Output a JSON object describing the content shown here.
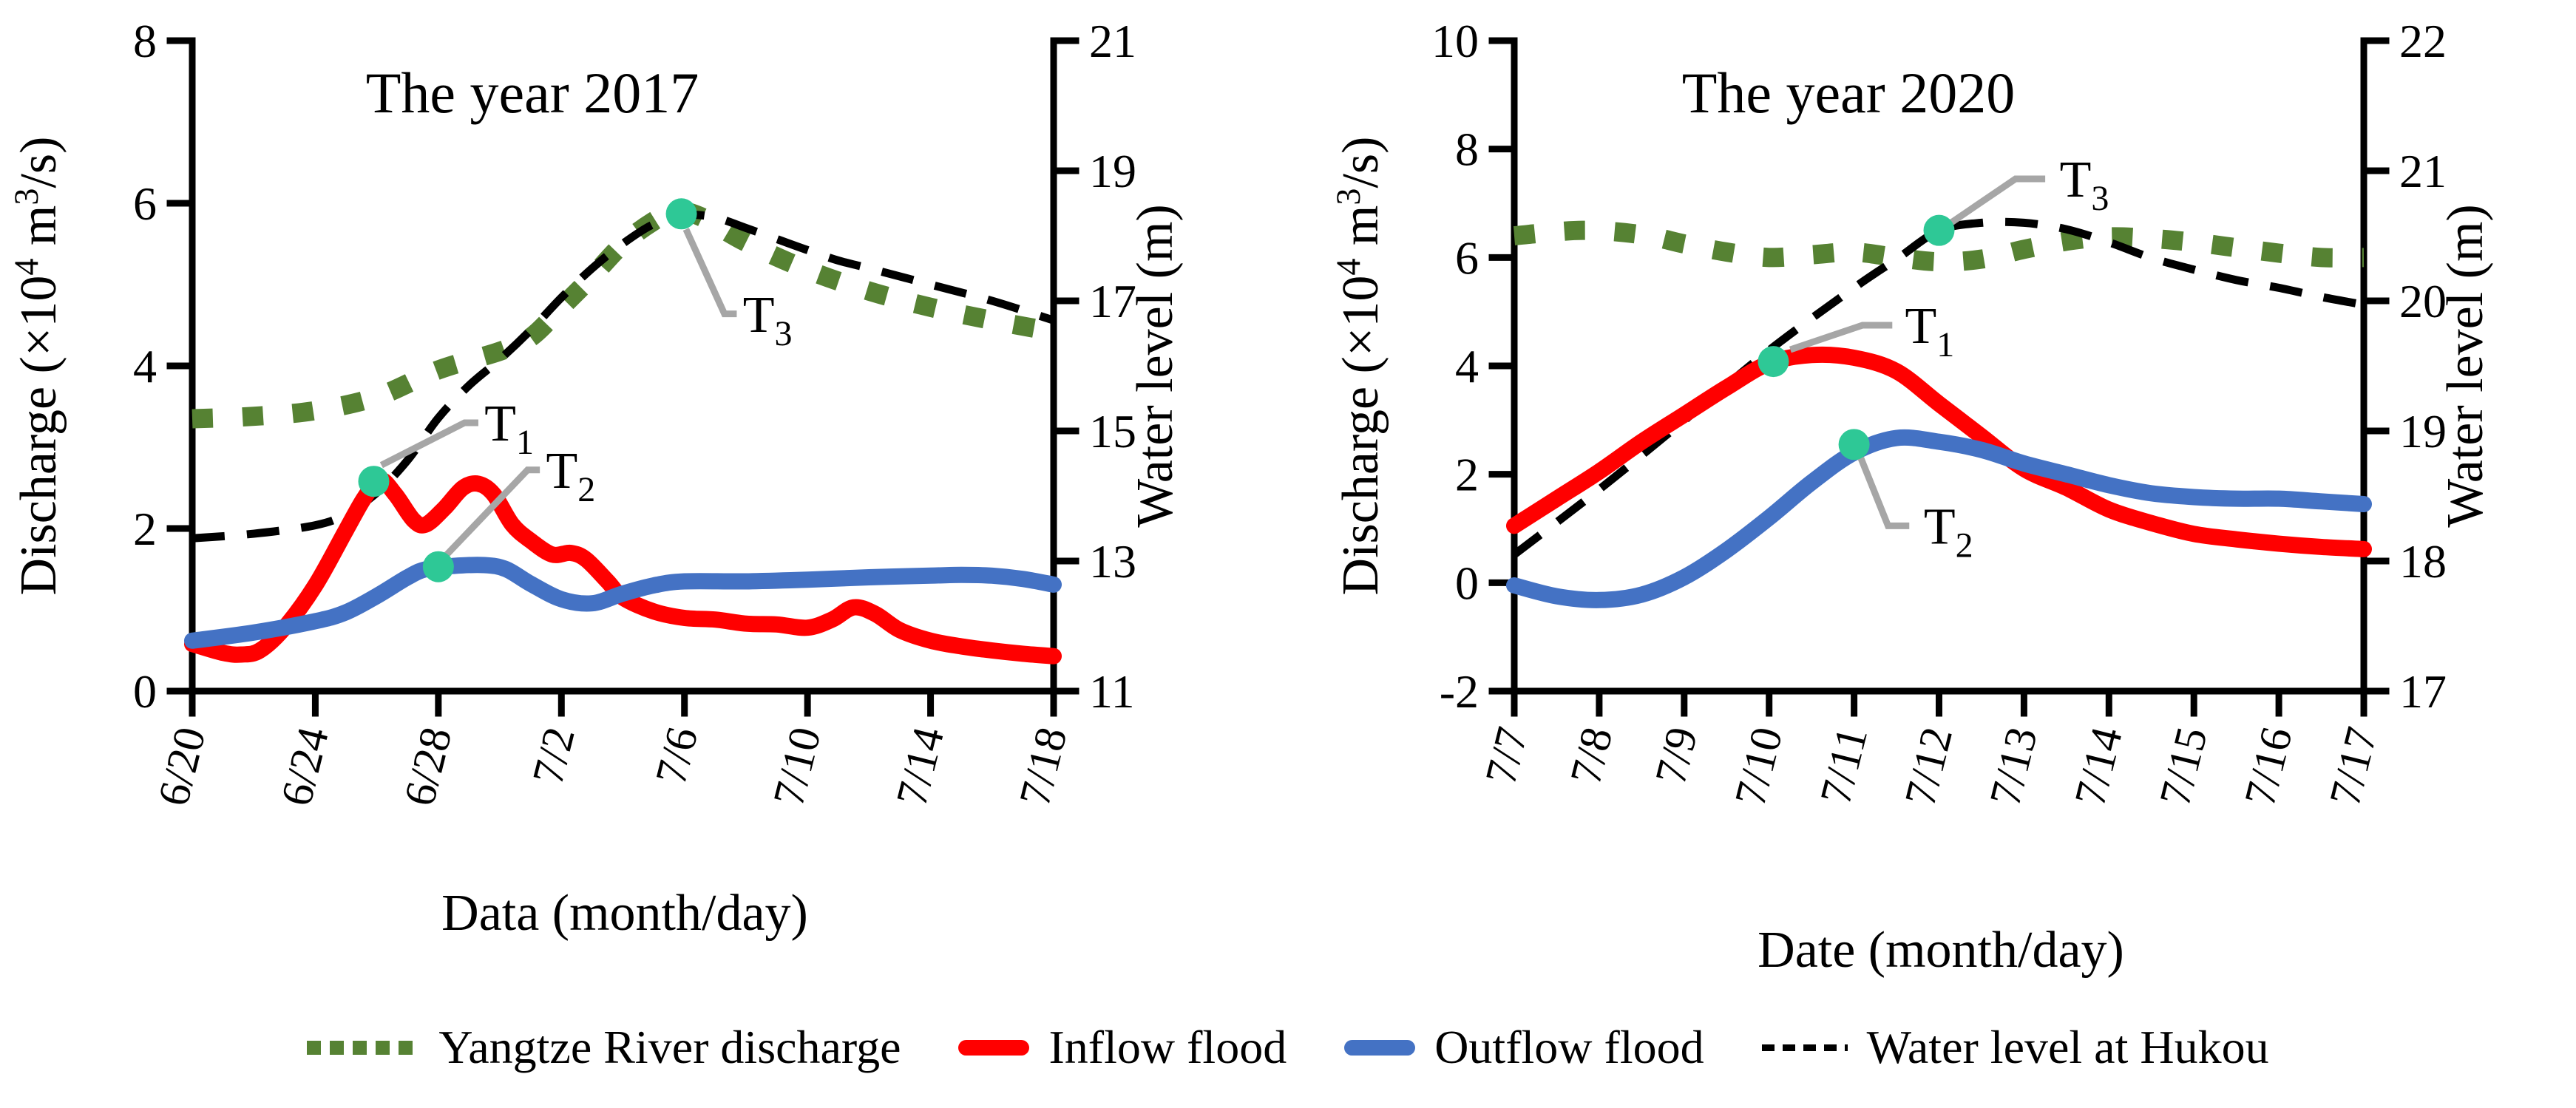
{
  "colors": {
    "green": "#568233",
    "red": "#FF0000",
    "blue": "#4472C4",
    "black": "#000000",
    "marker": "#2EC896",
    "leader": "#A6A6A6"
  },
  "legend": {
    "items": [
      {
        "swatch": "dotted-green",
        "label": "Yangtze River discharge"
      },
      {
        "swatch": "solid-red",
        "label": "Inflow flood"
      },
      {
        "swatch": "solid-blue",
        "label": "Outflow flood"
      },
      {
        "swatch": "dashed-black",
        "label": "Water level at Hukou"
      }
    ]
  },
  "chart_data": [
    {
      "id": "y2017",
      "type": "line",
      "title": "The year 2017",
      "x_title": "Data (month/day)",
      "grid": false,
      "legend_position": "bottom",
      "y_left_title_parts": [
        {
          "t": "Discharge (×10"
        },
        {
          "t": "4",
          "sup": true
        },
        {
          "t": " m"
        },
        {
          "t": "3",
          "sup": true
        },
        {
          "t": "/s)"
        }
      ],
      "y_right_title_parts": [
        {
          "t": "Water level (m)"
        }
      ],
      "x_span": 28,
      "x_tick_days": [
        0,
        4,
        8,
        12,
        16,
        20,
        24,
        28
      ],
      "x_tick_labels": [
        "6/20",
        "6/24",
        "6/28",
        "7/2",
        "7/6",
        "7/10",
        "7/14",
        "7/18"
      ],
      "y_left": {
        "min": 0,
        "max": 8,
        "ticks": [
          0,
          2,
          4,
          6,
          8
        ],
        "labels": [
          "0",
          "2",
          "4",
          "6",
          "8"
        ]
      },
      "y_right": {
        "min": 11,
        "max": 21,
        "ticks": [
          11,
          13,
          15,
          17,
          19,
          21
        ],
        "labels": [
          "11",
          "13",
          "15",
          "17",
          "19",
          "21"
        ]
      },
      "series": [
        {
          "name": "Yangtze River discharge",
          "axis": "left",
          "color": "green",
          "style": "dotted",
          "x": [
            0,
            2,
            4,
            6,
            8,
            10,
            11,
            12,
            13,
            14,
            15,
            15.7,
            16.5,
            18,
            20,
            22,
            24,
            26,
            28
          ],
          "y": [
            3.35,
            3.38,
            3.45,
            3.62,
            3.95,
            4.18,
            4.35,
            4.72,
            5.1,
            5.5,
            5.78,
            5.9,
            5.84,
            5.52,
            5.18,
            4.92,
            4.72,
            4.56,
            4.42
          ]
        },
        {
          "name": "Water level at Hukou",
          "axis": "right",
          "color": "black",
          "style": "dashed",
          "x": [
            0,
            2,
            4,
            5,
            6,
            7,
            8,
            9,
            10,
            11,
            12,
            13,
            14,
            15,
            16,
            17,
            18,
            19,
            20,
            21,
            22,
            24,
            26,
            28
          ],
          "y": [
            13.35,
            13.42,
            13.55,
            13.72,
            14.05,
            14.55,
            15.2,
            15.7,
            16.1,
            16.55,
            17.05,
            17.5,
            17.88,
            18.18,
            18.32,
            18.28,
            18.12,
            17.95,
            17.78,
            17.62,
            17.5,
            17.25,
            17.0,
            16.7
          ]
        },
        {
          "name": "Inflow flood",
          "axis": "left",
          "color": "red",
          "style": "solid",
          "x": [
            0,
            1,
            1.6,
            2.2,
            3,
            4,
            5,
            5.6,
            6.1,
            6.6,
            7.2,
            7.6,
            8.2,
            8.8,
            9.3,
            9.8,
            10.4,
            11,
            11.7,
            12.3,
            12.8,
            13.5,
            14,
            15,
            16,
            17,
            18,
            19,
            20,
            20.8,
            21.5,
            22.2,
            23,
            24,
            25,
            26,
            27,
            28
          ],
          "y": [
            0.58,
            0.47,
            0.45,
            0.5,
            0.78,
            1.3,
            1.98,
            2.38,
            2.6,
            2.42,
            2.1,
            2.05,
            2.25,
            2.5,
            2.55,
            2.42,
            2.05,
            1.85,
            1.68,
            1.7,
            1.62,
            1.35,
            1.15,
            0.98,
            0.9,
            0.88,
            0.83,
            0.82,
            0.78,
            0.88,
            1.03,
            0.95,
            0.75,
            0.62,
            0.55,
            0.5,
            0.46,
            0.43
          ]
        },
        {
          "name": "Outflow flood",
          "axis": "left",
          "color": "blue",
          "style": "solid",
          "x": [
            0,
            2,
            4,
            5,
            6,
            7,
            7.6,
            8.5,
            9.5,
            10.2,
            11,
            12,
            13,
            14,
            15,
            16,
            18,
            20,
            22,
            24,
            25,
            26,
            27,
            28
          ],
          "y": [
            0.62,
            0.72,
            0.86,
            0.97,
            1.17,
            1.4,
            1.5,
            1.54,
            1.55,
            1.5,
            1.32,
            1.13,
            1.08,
            1.2,
            1.3,
            1.35,
            1.35,
            1.37,
            1.4,
            1.42,
            1.43,
            1.42,
            1.38,
            1.31
          ]
        }
      ],
      "markers": [
        {
          "label_main": "T",
          "label_sub": "1",
          "day": 5.9,
          "value": 2.58,
          "leader": [
            [
              6.15,
              2.78
            ],
            [
              8.85,
              3.3
            ],
            [
              9.3,
              3.3
            ]
          ],
          "label_day": 9.5,
          "label_value": 3.08
        },
        {
          "label_main": "T",
          "label_sub": "2",
          "day": 8.0,
          "value": 1.53,
          "leader": [
            [
              8.25,
              1.67
            ],
            [
              10.9,
              2.72
            ],
            [
              11.3,
              2.72
            ]
          ],
          "label_day": 11.5,
          "label_value": 2.5
        },
        {
          "label_main": "T",
          "label_sub": "3",
          "day": 15.9,
          "value": 5.87,
          "leader": [
            [
              16.05,
              5.68
            ],
            [
              17.3,
              4.64
            ],
            [
              17.7,
              4.64
            ]
          ],
          "label_day": 17.9,
          "label_value": 4.42
        }
      ]
    },
    {
      "id": "y2020",
      "type": "line",
      "title": "The year 2020",
      "x_title": "Date (month/day)",
      "grid": false,
      "legend_position": "bottom",
      "y_left_title_parts": [
        {
          "t": "Discharge (×10"
        },
        {
          "t": "4",
          "sup": true
        },
        {
          "t": " m"
        },
        {
          "t": "3",
          "sup": true
        },
        {
          "t": "/s)"
        }
      ],
      "y_right_title_parts": [
        {
          "t": "Water level (m)"
        }
      ],
      "x_span": 10,
      "x_tick_days": [
        0,
        1,
        2,
        3,
        4,
        5,
        6,
        7,
        8,
        9,
        10
      ],
      "x_tick_labels": [
        "7/7",
        "7/8",
        "7/9",
        "7/10",
        "7/11",
        "7/12",
        "7/13",
        "7/14",
        "7/15",
        "7/16",
        "7/17"
      ],
      "y_left": {
        "min": -2,
        "max": 10,
        "ticks": [
          -2,
          0,
          2,
          4,
          6,
          8,
          10
        ],
        "labels": [
          "-2",
          "0",
          "2",
          "4",
          "6",
          "8",
          "10"
        ]
      },
      "y_right": {
        "min": 17,
        "max": 22,
        "ticks": [
          17,
          18,
          19,
          20,
          21,
          22
        ],
        "labels": [
          "17",
          "18",
          "19",
          "20",
          "21",
          "22"
        ]
      },
      "series": [
        {
          "name": "Yangtze River discharge",
          "axis": "left",
          "color": "green",
          "style": "dotted",
          "x": [
            0,
            0.8,
            1.5,
            2,
            2.5,
            3,
            3.5,
            4,
            4.5,
            5,
            5.5,
            6,
            6.5,
            7,
            7.5,
            8,
            8.5,
            9,
            9.5,
            10
          ],
          "y": [
            6.4,
            6.5,
            6.42,
            6.25,
            6.1,
            6.0,
            6.05,
            6.1,
            6.0,
            5.92,
            5.97,
            6.15,
            6.3,
            6.38,
            6.35,
            6.28,
            6.18,
            6.08,
            6.0,
            6.0
          ]
        },
        {
          "name": "Water level at Hukou",
          "axis": "right",
          "color": "black",
          "style": "dashed",
          "x": [
            0,
            1,
            2,
            3,
            4,
            4.5,
            5,
            5.5,
            6,
            6.5,
            7,
            7.5,
            8,
            8.5,
            9,
            9.5,
            10
          ],
          "y": [
            18.05,
            18.55,
            19.08,
            19.62,
            20.1,
            20.32,
            20.54,
            20.6,
            20.6,
            20.55,
            20.45,
            20.33,
            20.24,
            20.16,
            20.1,
            20.03,
            19.97
          ]
        },
        {
          "name": "Inflow flood",
          "axis": "left",
          "color": "red",
          "style": "solid",
          "x": [
            0,
            0.5,
            1,
            1.5,
            2,
            2.5,
            3,
            3.5,
            4,
            4.5,
            5,
            5.5,
            6,
            6.5,
            7,
            7.5,
            8,
            8.5,
            9,
            9.5,
            10
          ],
          "y": [
            1.05,
            1.55,
            2.05,
            2.6,
            3.1,
            3.6,
            4.05,
            4.2,
            4.15,
            3.9,
            3.3,
            2.7,
            2.1,
            1.75,
            1.35,
            1.1,
            0.9,
            0.8,
            0.72,
            0.66,
            0.62
          ]
        },
        {
          "name": "Outflow flood",
          "axis": "left",
          "color": "blue",
          "style": "solid",
          "x": [
            0,
            0.5,
            1,
            1.5,
            2,
            2.5,
            3,
            3.5,
            4,
            4.5,
            5,
            5.5,
            6,
            6.5,
            7,
            7.5,
            8,
            8.5,
            9,
            9.5,
            10
          ],
          "y": [
            -0.05,
            -0.25,
            -0.32,
            -0.22,
            0.1,
            0.6,
            1.2,
            1.85,
            2.4,
            2.67,
            2.6,
            2.45,
            2.2,
            2.0,
            1.8,
            1.65,
            1.58,
            1.55,
            1.55,
            1.5,
            1.45
          ]
        }
      ],
      "markers": [
        {
          "label_main": "T",
          "label_sub": "1",
          "day": 3.05,
          "value": 4.08,
          "leader": [
            [
              3.25,
              4.3
            ],
            [
              4.1,
              4.75
            ],
            [
              4.45,
              4.75
            ]
          ],
          "label_day": 4.6,
          "label_value": 4.42
        },
        {
          "label_main": "T",
          "label_sub": "2",
          "day": 4.0,
          "value": 2.55,
          "leader": [
            [
              4.08,
              2.3
            ],
            [
              4.4,
              1.05
            ],
            [
              4.65,
              1.05
            ]
          ],
          "label_day": 4.82,
          "label_value": 0.72
        },
        {
          "label_main": "T",
          "label_sub": "3",
          "day": 5.0,
          "value": 6.5,
          "leader": [
            [
              5.15,
              6.65
            ],
            [
              5.9,
              7.45
            ],
            [
              6.25,
              7.45
            ]
          ],
          "label_day": 6.42,
          "label_value": 7.12
        }
      ]
    }
  ]
}
